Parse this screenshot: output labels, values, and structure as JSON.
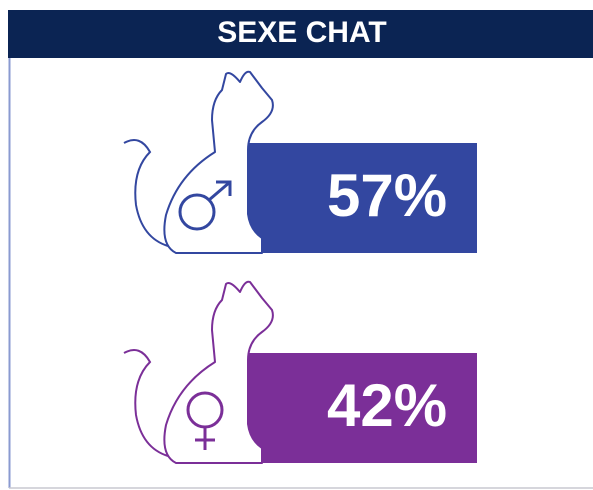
{
  "chart_data": {
    "type": "pictogram",
    "title": "SEXE CHAT",
    "values": [
      57,
      42
    ],
    "value_labels": [
      "57%",
      "42%"
    ],
    "colors": [
      "#3347a0",
      "#7b2f98"
    ]
  }
}
